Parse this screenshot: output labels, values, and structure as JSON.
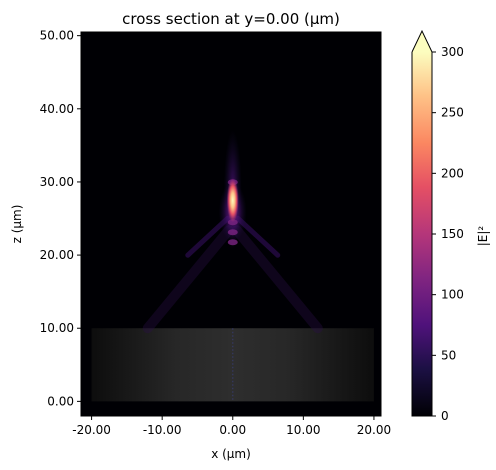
{
  "chart_data": {
    "type": "heatmap",
    "title": "cross section at y=0.00 (μm)",
    "xlabel": "x (μm)",
    "ylabel": "z (μm)",
    "xlim": [
      -21.5,
      21.0
    ],
    "ylim": [
      -2.0,
      50.5
    ],
    "x_ticks": [
      {
        "value": -20,
        "label": "-20.00"
      },
      {
        "value": -10,
        "label": "-10.00"
      },
      {
        "value": 0,
        "label": "0.00"
      },
      {
        "value": 10,
        "label": "10.00"
      },
      {
        "value": 20,
        "label": "20.00"
      }
    ],
    "y_ticks": [
      {
        "value": 0,
        "label": "0.00"
      },
      {
        "value": 10,
        "label": "10.00"
      },
      {
        "value": 20,
        "label": "20.00"
      },
      {
        "value": 30,
        "label": "30.00"
      },
      {
        "value": 40,
        "label": "40.00"
      },
      {
        "value": 50,
        "label": "50.00"
      }
    ],
    "colormap": "magma",
    "colorbar": {
      "label": "|E|²",
      "min": 0,
      "max": 300,
      "extend": "max",
      "ticks": [
        {
          "value": 0,
          "label": "0"
        },
        {
          "value": 50,
          "label": "50"
        },
        {
          "value": 100,
          "label": "100"
        },
        {
          "value": 150,
          "label": "150"
        },
        {
          "value": 200,
          "label": "200"
        },
        {
          "value": 250,
          "label": "250"
        },
        {
          "value": 300,
          "label": "300"
        }
      ]
    },
    "structure": {
      "name": "slab",
      "x_range": [
        -20,
        20
      ],
      "z_range": [
        0,
        10
      ]
    },
    "focus": {
      "x": 0,
      "z": 27.5,
      "peak": 300
    }
  }
}
